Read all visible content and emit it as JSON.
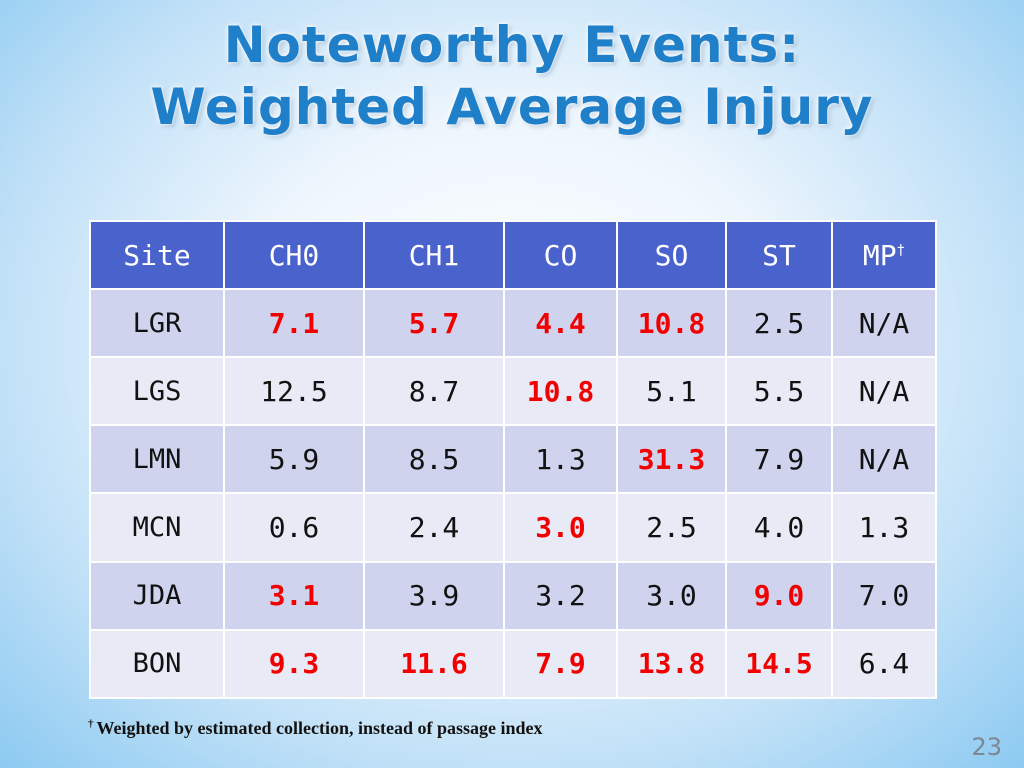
{
  "slide": {
    "title_line1": "Noteworthy Events:",
    "title_line2": "Weighted Average Injury",
    "page_number": "23",
    "footnote_mark": "†",
    "footnote_text": "Weighted by estimated collection, instead of passage index"
  },
  "table": {
    "headers": [
      "Site",
      "CH0",
      "CH1",
      "CO",
      "SO",
      "ST",
      "MP"
    ],
    "header_mark": "†",
    "rows": [
      {
        "site": "LGR",
        "values": [
          "7.1",
          "5.7",
          "4.4",
          "10.8",
          "2.5",
          "N/A"
        ],
        "highlight": [
          true,
          true,
          true,
          true,
          false,
          false
        ]
      },
      {
        "site": "LGS",
        "values": [
          "12.5",
          "8.7",
          "10.8",
          "5.1",
          "5.5",
          "N/A"
        ],
        "highlight": [
          false,
          false,
          true,
          false,
          false,
          false
        ]
      },
      {
        "site": "LMN",
        "values": [
          "5.9",
          "8.5",
          "1.3",
          "31.3",
          "7.9",
          "N/A"
        ],
        "highlight": [
          false,
          false,
          false,
          true,
          false,
          false
        ]
      },
      {
        "site": "MCN",
        "values": [
          "0.6",
          "2.4",
          "3.0",
          "2.5",
          "4.0",
          "1.3"
        ],
        "highlight": [
          false,
          false,
          true,
          false,
          false,
          false
        ]
      },
      {
        "site": "JDA",
        "values": [
          "3.1",
          "3.9",
          "3.2",
          "3.0",
          "9.0",
          "7.0"
        ],
        "highlight": [
          true,
          false,
          false,
          false,
          true,
          false
        ]
      },
      {
        "site": "BON",
        "values": [
          "9.3",
          "11.6",
          "7.9",
          "13.8",
          "14.5",
          "6.4"
        ],
        "highlight": [
          true,
          true,
          true,
          true,
          true,
          false
        ]
      }
    ],
    "colors": {
      "header_bg": "#4a63cc",
      "row_odd_bg": "#cfd3ee",
      "row_even_bg": "#e8eaf6",
      "highlight_text": "#f20000",
      "title_text": "#1f7fc9"
    }
  }
}
